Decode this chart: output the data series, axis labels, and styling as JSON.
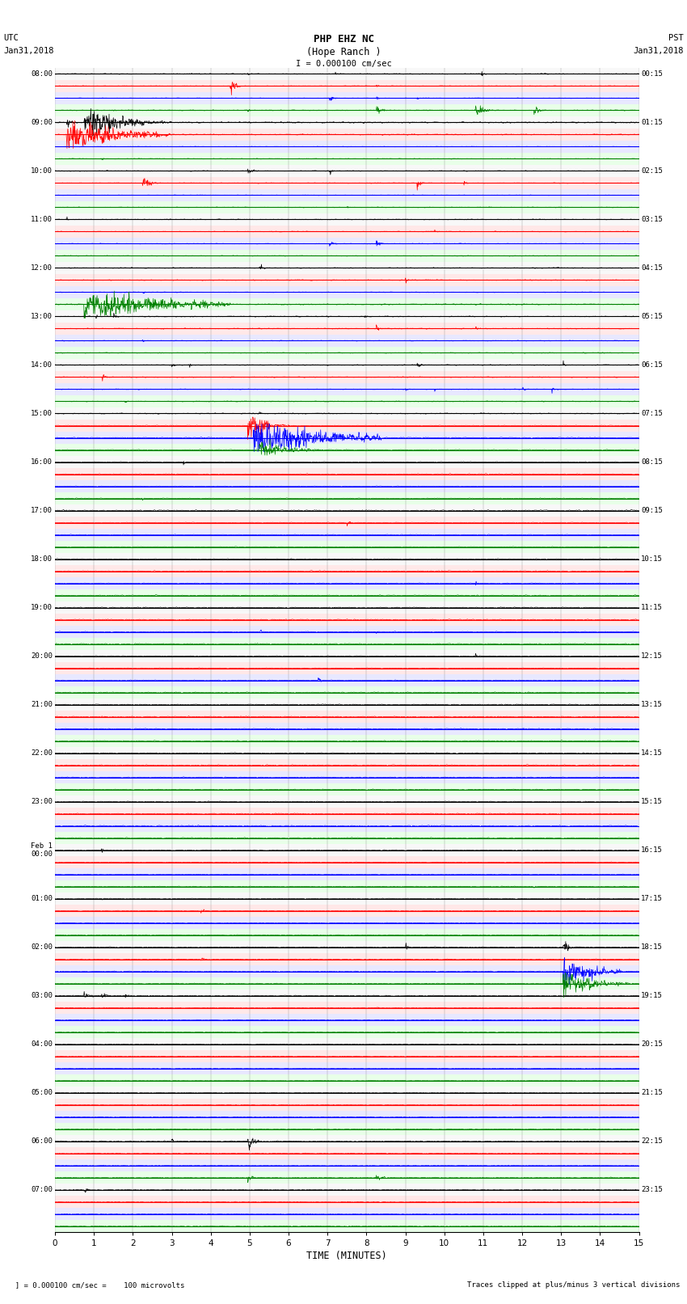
{
  "title_line1": "PHP EHZ NC",
  "title_line2": "(Hope Ranch )",
  "scale_label": "I = 0.000100 cm/sec",
  "left_header_line1": "UTC",
  "left_header_line2": "Jan31,2018",
  "right_header_line1": "PST",
  "right_header_line2": "Jan31,2018",
  "xlabel": "TIME (MINUTES)",
  "footer_left": "  ] = 0.000100 cm/sec =    100 microvolts",
  "footer_right": "Traces clipped at plus/minus 3 vertical divisions",
  "utc_hour_labels": [
    "08:00",
    "09:00",
    "10:00",
    "11:00",
    "12:00",
    "13:00",
    "14:00",
    "15:00",
    "16:00",
    "17:00",
    "18:00",
    "19:00",
    "20:00",
    "21:00",
    "22:00",
    "23:00",
    "Feb 1\n00:00",
    "01:00",
    "02:00",
    "03:00",
    "04:00",
    "05:00",
    "06:00",
    "07:00"
  ],
  "pst_hour_labels": [
    "00:15",
    "01:15",
    "02:15",
    "03:15",
    "04:15",
    "05:15",
    "06:15",
    "07:15",
    "08:15",
    "09:15",
    "10:15",
    "11:15",
    "12:15",
    "13:15",
    "14:15",
    "15:15",
    "16:15",
    "17:15",
    "18:15",
    "19:15",
    "20:15",
    "21:15",
    "22:15",
    "23:15"
  ],
  "colors": [
    "black",
    "red",
    "blue",
    "green"
  ],
  "row_bg_colors": [
    "#f8f8f8",
    "#ffe8e8",
    "#e8e8ff",
    "#e8ffe8"
  ],
  "n_rows": 96,
  "n_minutes": 15,
  "amplitude_scale": 0.38,
  "n_pts": 1500
}
